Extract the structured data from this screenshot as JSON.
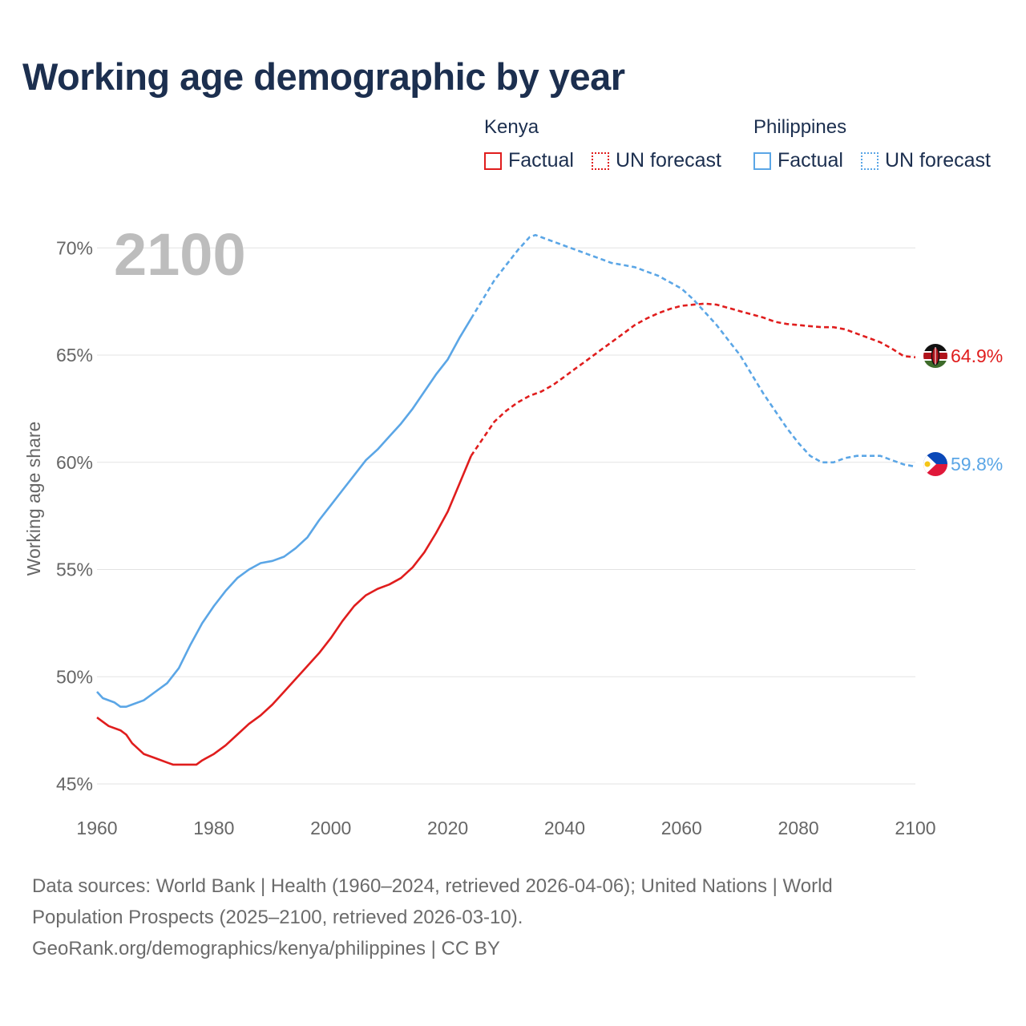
{
  "title": "Working age demographic by year",
  "legend": {
    "groups": [
      {
        "country": "Kenya",
        "factual_label": "Factual",
        "forecast_label": "UN forecast",
        "color": "#e01d1d"
      },
      {
        "country": "Philippines",
        "factual_label": "Factual",
        "forecast_label": "UN forecast",
        "color": "#5ba6e6"
      }
    ]
  },
  "year_display": "2100",
  "end_labels": {
    "kenya": "64.9%",
    "philippines": "59.8%"
  },
  "flag_icons": {
    "kenya": "kenya-flag-icon",
    "philippines": "philippines-flag-icon"
  },
  "sources": {
    "line1": "Data sources: World Bank | Health (1960–2024, retrieved 2026-04-06); United Nations | World",
    "line2": "Population Prospects (2025–2100, retrieved 2026-03-10).",
    "line3": "GeoRank.org/demographics/kenya/philippines | CC BY"
  },
  "chart_data": {
    "type": "line",
    "title": "Working age demographic by year",
    "xlabel": "",
    "ylabel": "Working age share",
    "xlim": [
      1960,
      2100
    ],
    "ylim": [
      45,
      71
    ],
    "x_ticks": [
      1960,
      1980,
      2000,
      2020,
      2040,
      2060,
      2080,
      2100
    ],
    "y_ticks": [
      45,
      50,
      55,
      60,
      65,
      70
    ],
    "y_tick_labels": [
      "45%",
      "50%",
      "55%",
      "60%",
      "65%",
      "70%"
    ],
    "grid": true,
    "forecast_start": 2024,
    "series": [
      {
        "name": "Kenya",
        "color": "#e01d1d",
        "x": [
          1960,
          1962,
          1964,
          1965,
          1966,
          1968,
          1970,
          1972,
          1973,
          1975,
          1977,
          1978,
          1980,
          1982,
          1984,
          1986,
          1988,
          1990,
          1992,
          1994,
          1996,
          1998,
          2000,
          2002,
          2004,
          2006,
          2008,
          2010,
          2012,
          2014,
          2016,
          2018,
          2020,
          2022,
          2024,
          2026,
          2028,
          2030,
          2032,
          2034,
          2036,
          2038,
          2040,
          2042,
          2044,
          2046,
          2048,
          2050,
          2052,
          2054,
          2056,
          2058,
          2060,
          2062,
          2064,
          2066,
          2068,
          2070,
          2072,
          2074,
          2076,
          2078,
          2080,
          2082,
          2084,
          2086,
          2088,
          2090,
          2092,
          2094,
          2096,
          2098,
          2100
        ],
        "values": [
          48.1,
          47.7,
          47.5,
          47.3,
          46.9,
          46.4,
          46.2,
          46.0,
          45.9,
          45.9,
          45.9,
          46.1,
          46.4,
          46.8,
          47.3,
          47.8,
          48.2,
          48.7,
          49.3,
          49.9,
          50.5,
          51.1,
          51.8,
          52.6,
          53.3,
          53.8,
          54.1,
          54.3,
          54.6,
          55.1,
          55.8,
          56.7,
          57.7,
          59.0,
          60.3,
          61.1,
          61.9,
          62.4,
          62.8,
          63.1,
          63.3,
          63.6,
          64.0,
          64.4,
          64.8,
          65.2,
          65.6,
          66.0,
          66.4,
          66.7,
          66.95,
          67.15,
          67.3,
          67.35,
          67.4,
          67.35,
          67.2,
          67.05,
          66.9,
          66.75,
          66.55,
          66.45,
          66.4,
          66.35,
          66.3,
          66.3,
          66.2,
          66.0,
          65.8,
          65.6,
          65.3,
          64.95,
          64.9
        ]
      },
      {
        "name": "Philippines",
        "color": "#5ba6e6",
        "x": [
          1960,
          1961,
          1963,
          1964,
          1965,
          1966,
          1968,
          1970,
          1972,
          1974,
          1976,
          1978,
          1980,
          1982,
          1984,
          1986,
          1988,
          1990,
          1992,
          1994,
          1996,
          1998,
          2000,
          2002,
          2004,
          2006,
          2008,
          2010,
          2012,
          2014,
          2016,
          2018,
          2020,
          2022,
          2024,
          2026,
          2028,
          2030,
          2032,
          2034,
          2035,
          2036,
          2038,
          2040,
          2042,
          2044,
          2046,
          2048,
          2050,
          2052,
          2054,
          2056,
          2058,
          2060,
          2062,
          2064,
          2066,
          2068,
          2070,
          2072,
          2074,
          2076,
          2078,
          2080,
          2082,
          2084,
          2085,
          2086,
          2088,
          2090,
          2092,
          2094,
          2096,
          2098,
          2100
        ],
        "values": [
          49.3,
          49.0,
          48.8,
          48.6,
          48.6,
          48.7,
          48.9,
          49.3,
          49.7,
          50.4,
          51.5,
          52.5,
          53.3,
          54.0,
          54.6,
          55.0,
          55.3,
          55.4,
          55.6,
          56.0,
          56.5,
          57.3,
          58.0,
          58.7,
          59.4,
          60.1,
          60.6,
          61.2,
          61.8,
          62.5,
          63.3,
          64.1,
          64.8,
          65.8,
          66.7,
          67.6,
          68.5,
          69.2,
          69.9,
          70.5,
          70.6,
          70.5,
          70.3,
          70.1,
          69.9,
          69.7,
          69.5,
          69.3,
          69.2,
          69.1,
          68.9,
          68.7,
          68.4,
          68.1,
          67.6,
          67.0,
          66.4,
          65.7,
          65.0,
          64.1,
          63.2,
          62.4,
          61.6,
          60.9,
          60.3,
          60.0,
          60.0,
          60.0,
          60.2,
          60.3,
          60.3,
          60.3,
          60.1,
          59.9,
          59.8
        ]
      }
    ]
  }
}
